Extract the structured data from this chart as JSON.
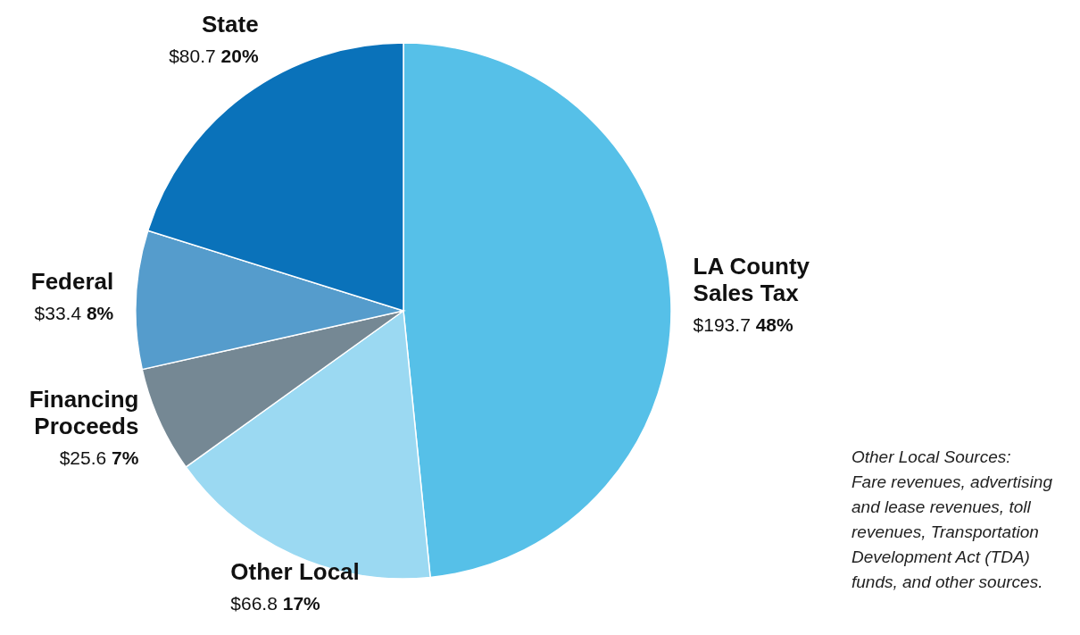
{
  "chart_data": {
    "type": "pie",
    "categories": [
      "LA County Sales Tax",
      "Other Local",
      "Financing Proceeds",
      "Federal",
      "State"
    ],
    "values": [
      193.7,
      66.8,
      25.6,
      33.4,
      80.7
    ],
    "value_labels": [
      "$193.7  48%",
      "$66.8  17%",
      "$25.6  7%",
      "$33.4  8%",
      "$80.7  20%"
    ],
    "colors": [
      "#56c0e8",
      "#9bd9f2",
      "#758894",
      "#559ccc",
      "#0a72ba"
    ],
    "annotations": [
      "Other Local Sources:\nFare revenues, advertising\nand lease revenues, toll\nrevenues, Transportation\nDevelopment Act (TDA)\nfunds, and other sources."
    ]
  }
}
